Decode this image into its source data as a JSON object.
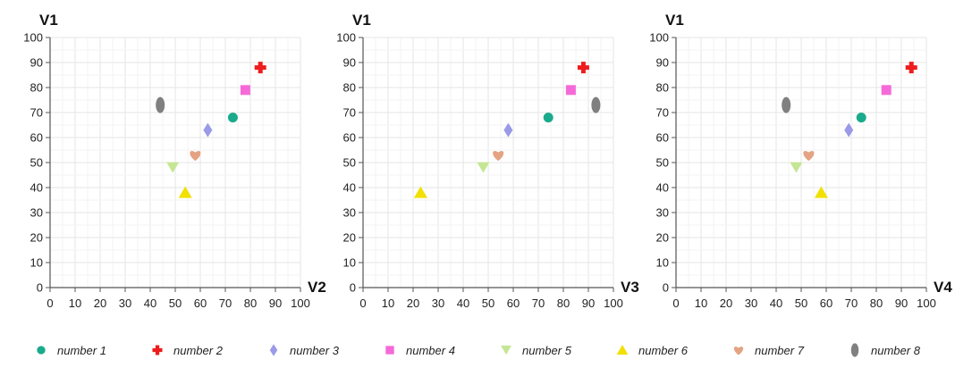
{
  "chart_data": [
    {
      "type": "scatter",
      "xlabel": "V2",
      "ylabel": "V1",
      "xlim": [
        0,
        100
      ],
      "ylim": [
        0,
        100
      ],
      "xticks": [
        0,
        10,
        20,
        30,
        40,
        50,
        60,
        70,
        80,
        90,
        100
      ],
      "yticks": [
        0,
        10,
        20,
        30,
        40,
        50,
        60,
        70,
        80,
        90,
        100
      ],
      "grid": true,
      "points": [
        {
          "series": "number 1",
          "x": 73,
          "y": 68
        },
        {
          "series": "number 2",
          "x": 84,
          "y": 88
        },
        {
          "series": "number 3",
          "x": 63,
          "y": 63
        },
        {
          "series": "number 4",
          "x": 78,
          "y": 79
        },
        {
          "series": "number 5",
          "x": 49,
          "y": 48
        },
        {
          "series": "number 6",
          "x": 54,
          "y": 38
        },
        {
          "series": "number 7",
          "x": 58,
          "y": 53
        },
        {
          "series": "number 8",
          "x": 44,
          "y": 73
        }
      ]
    },
    {
      "type": "scatter",
      "xlabel": "V3",
      "ylabel": "V1",
      "xlim": [
        0,
        100
      ],
      "ylim": [
        0,
        100
      ],
      "xticks": [
        0,
        10,
        20,
        30,
        40,
        50,
        60,
        70,
        80,
        90,
        100
      ],
      "yticks": [
        0,
        10,
        20,
        30,
        40,
        50,
        60,
        70,
        80,
        90,
        100
      ],
      "grid": true,
      "points": [
        {
          "series": "number 1",
          "x": 74,
          "y": 68
        },
        {
          "series": "number 2",
          "x": 88,
          "y": 88
        },
        {
          "series": "number 3",
          "x": 58,
          "y": 63
        },
        {
          "series": "number 4",
          "x": 83,
          "y": 79
        },
        {
          "series": "number 5",
          "x": 48,
          "y": 48
        },
        {
          "series": "number 6",
          "x": 23,
          "y": 38
        },
        {
          "series": "number 7",
          "x": 54,
          "y": 53
        },
        {
          "series": "number 8",
          "x": 93,
          "y": 73
        }
      ]
    },
    {
      "type": "scatter",
      "xlabel": "V4",
      "ylabel": "V1",
      "xlim": [
        0,
        100
      ],
      "ylim": [
        0,
        100
      ],
      "xticks": [
        0,
        10,
        20,
        30,
        40,
        50,
        60,
        70,
        80,
        90,
        100
      ],
      "yticks": [
        0,
        10,
        20,
        30,
        40,
        50,
        60,
        70,
        80,
        90,
        100
      ],
      "grid": true,
      "points": [
        {
          "series": "number 1",
          "x": 74,
          "y": 68
        },
        {
          "series": "number 2",
          "x": 94,
          "y": 88
        },
        {
          "series": "number 3",
          "x": 69,
          "y": 63
        },
        {
          "series": "number 4",
          "x": 84,
          "y": 79
        },
        {
          "series": "number 5",
          "x": 48,
          "y": 48
        },
        {
          "series": "number 6",
          "x": 58,
          "y": 38
        },
        {
          "series": "number 7",
          "x": 53,
          "y": 53
        },
        {
          "series": "number 8",
          "x": 44,
          "y": 73
        }
      ]
    }
  ],
  "legend": {
    "placement": "bottom",
    "items": [
      {
        "label": "number 1",
        "shape": "circle",
        "color": "#1aaa8c"
      },
      {
        "label": "number 2",
        "shape": "cross",
        "color": "#ee1c1c"
      },
      {
        "label": "number 3",
        "shape": "diamond",
        "color": "#9a9ae8"
      },
      {
        "label": "number 4",
        "shape": "square",
        "color": "#f56ad8"
      },
      {
        "label": "number 5",
        "shape": "triangle-down",
        "color": "#c5e695"
      },
      {
        "label": "number 6",
        "shape": "triangle-up",
        "color": "#f1e000"
      },
      {
        "label": "number 7",
        "shape": "heart",
        "color": "#e4a382"
      },
      {
        "label": "number 8",
        "shape": "ellipse",
        "color": "#808080"
      }
    ]
  }
}
